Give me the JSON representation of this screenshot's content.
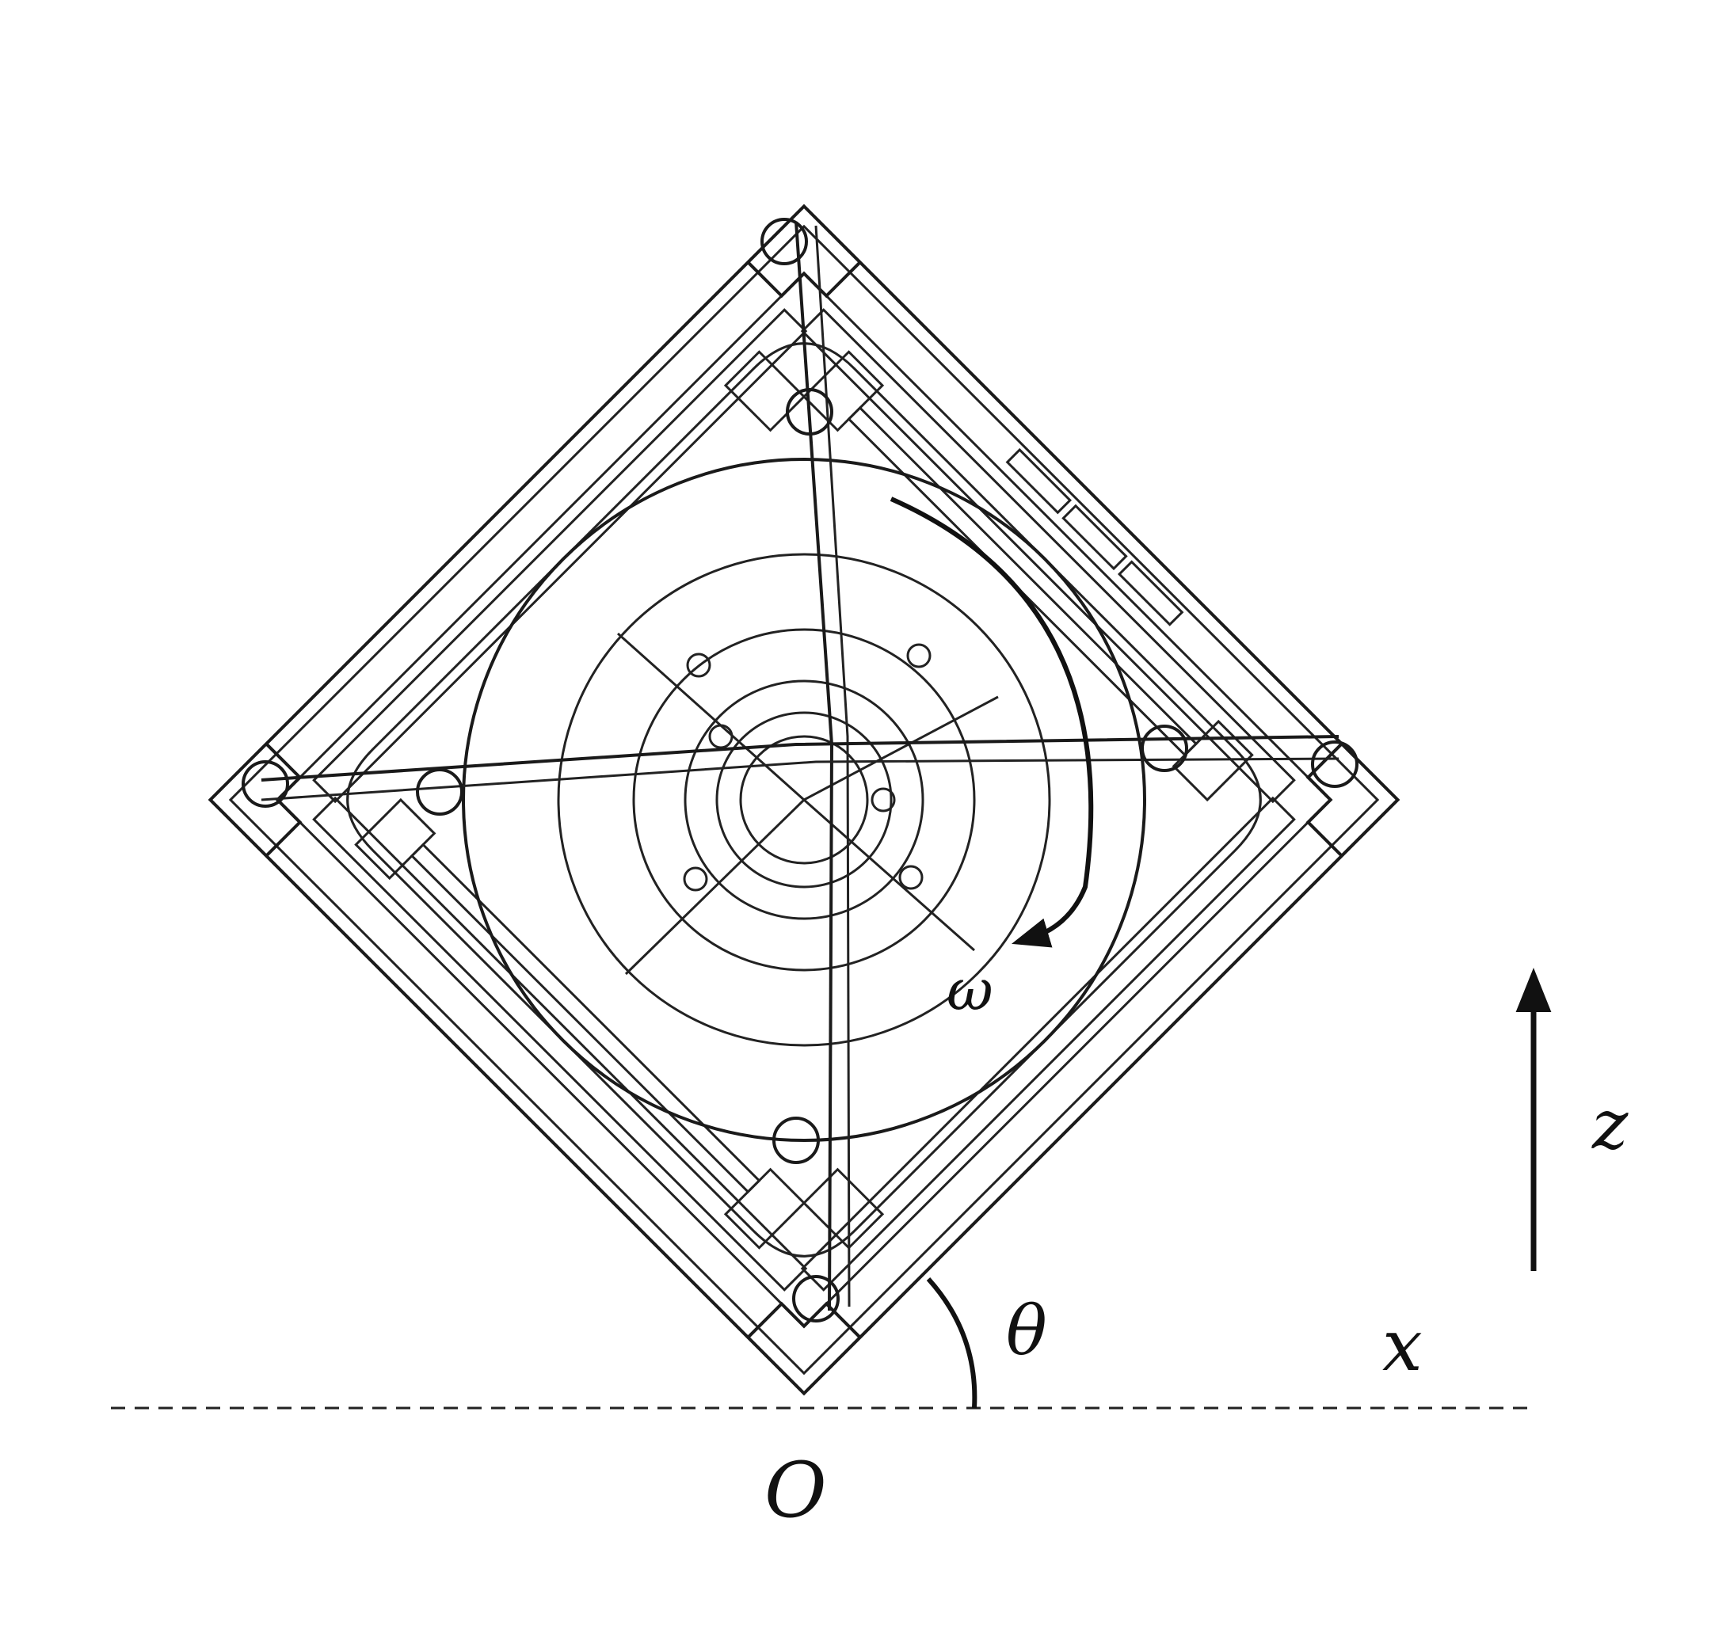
{
  "labels": {
    "omega": "ω",
    "theta": "θ",
    "x": "x",
    "z": "z",
    "origin": "O"
  },
  "colors": {
    "ink": "#111111",
    "background": "#ffffff"
  },
  "icons": {
    "rotation_arrow": "curved-arrow-clockwise",
    "z_arrow": "arrow-up"
  }
}
